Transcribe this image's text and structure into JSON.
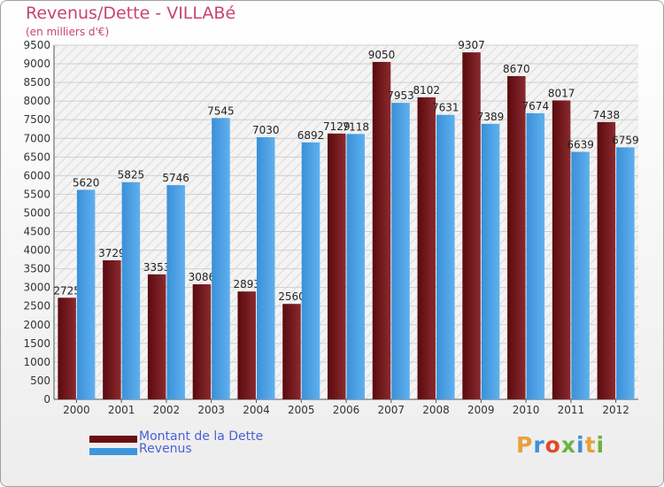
{
  "header": {
    "title": "Revenus/Dette - VILLABé",
    "subtitle": "(en milliers d'€)"
  },
  "logo": {
    "text": "Proxiti",
    "letter_colors": [
      "#e8a13a",
      "#3f8fd8",
      "#e04a2a",
      "#6cb33f",
      "#3f8fd8",
      "#e8a13a",
      "#6cb33f"
    ]
  },
  "colors": {
    "dette": "#6b0d11",
    "revenus": "#3d96dc",
    "text_title": "#c8446e",
    "legend_text": "#4a5fd6",
    "axis_text": "#333333"
  },
  "chart_data": {
    "type": "bar",
    "title": "Revenus/Dette - VILLABé",
    "subtitle": "(en milliers d'€)",
    "categories": [
      "2000",
      "2001",
      "2002",
      "2003",
      "2004",
      "2005",
      "2006",
      "2007",
      "2008",
      "2009",
      "2010",
      "2011",
      "2012"
    ],
    "series": [
      {
        "name": "Montant de la Dette",
        "color": "#6b0d11",
        "values": [
          2725,
          3729,
          3353,
          3086,
          2893,
          2560,
          7129,
          9050,
          8102,
          9307,
          8670,
          8017,
          7438
        ]
      },
      {
        "name": "Revenus",
        "color": "#3d96dc",
        "values": [
          5620,
          5825,
          5746,
          7545,
          7030,
          6892,
          7118,
          7953,
          7631,
          7389,
          7674,
          6639,
          6759
        ]
      }
    ],
    "value_labels": [
      [
        "2725",
        "3729",
        "3353",
        "3086",
        "2893",
        "2560",
        "7129",
        "9050",
        "8102",
        "9307",
        "8670",
        "8017",
        "7438"
      ],
      [
        "5620",
        "5825",
        "5746",
        "7545",
        "7030",
        "6892",
        "7118",
        "7953",
        "7631",
        "7389",
        "7674",
        "6639",
        "6759"
      ]
    ],
    "y_ticks": [
      "0",
      "500",
      "1000",
      "1500",
      "2000",
      "2500",
      "3000",
      "3500",
      "4000",
      "4500",
      "5000",
      "5500",
      "6000",
      "6500",
      "7000",
      "7500",
      "8000",
      "8500",
      "9000",
      "9500"
    ],
    "ylim": [
      0,
      9500
    ],
    "xlabel": "",
    "ylabel": "",
    "grid": true,
    "legend_position": "bottom-left"
  }
}
